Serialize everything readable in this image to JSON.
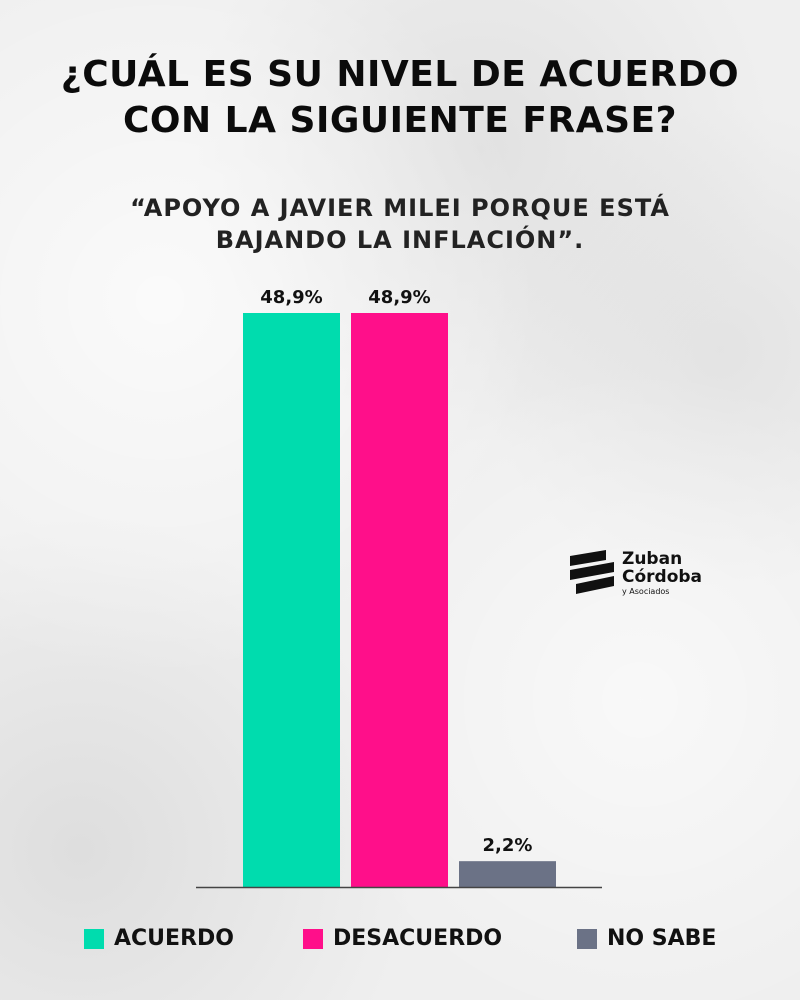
{
  "header": {
    "title_lines": [
      "¿CUÁL ES SU NIVEL DE ACUERDO",
      "CON LA SIGUIENTE FRASE?"
    ],
    "subtitle_lines": [
      "“APOYO A JAVIER MILEI PORQUE ESTÁ",
      "BAJANDO LA INFLACIÓN”."
    ]
  },
  "chart_data": {
    "type": "bar",
    "categories": [
      "ACUERDO",
      "DESACUERDO",
      "NO SABE"
    ],
    "values": [
      48.9,
      48.9,
      2.2
    ],
    "value_labels": [
      "48,9%",
      "48,9%",
      "2,2%"
    ],
    "colors": [
      "#00dcae",
      "#ff0f8a",
      "#6b7286"
    ],
    "ylim": [
      0,
      48.9
    ],
    "grid": false,
    "legend_position": "bottom"
  },
  "brand": {
    "line1": "Zuban",
    "line2": "Córdoba",
    "line3": "y Asociados"
  }
}
